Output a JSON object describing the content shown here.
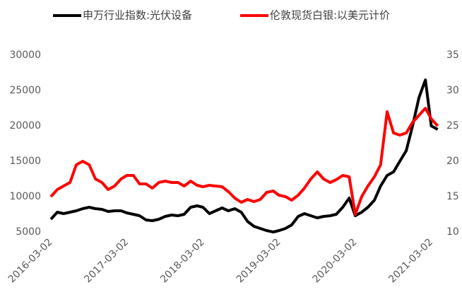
{
  "chart_data": {
    "type": "line",
    "x": [
      "2016-03-02",
      "2016-04-02",
      "2016-05-02",
      "2016-06-02",
      "2016-07-02",
      "2016-08-02",
      "2016-09-02",
      "2016-10-02",
      "2016-11-02",
      "2016-12-02",
      "2017-01-02",
      "2017-02-02",
      "2017-03-02",
      "2017-04-02",
      "2017-05-02",
      "2017-06-02",
      "2017-07-02",
      "2017-08-02",
      "2017-09-02",
      "2017-10-02",
      "2017-11-02",
      "2017-12-02",
      "2018-01-02",
      "2018-02-02",
      "2018-03-02",
      "2018-04-02",
      "2018-05-02",
      "2018-06-02",
      "2018-07-02",
      "2018-08-02",
      "2018-09-02",
      "2018-10-02",
      "2018-11-02",
      "2018-12-02",
      "2019-01-02",
      "2019-02-02",
      "2019-03-02",
      "2019-04-02",
      "2019-05-02",
      "2019-06-02",
      "2019-07-02",
      "2019-08-02",
      "2019-09-02",
      "2019-10-02",
      "2019-11-02",
      "2019-12-02",
      "2020-01-02",
      "2020-02-02",
      "2020-03-02",
      "2020-04-02",
      "2020-05-02",
      "2020-06-02",
      "2020-07-02",
      "2020-08-02",
      "2020-09-02",
      "2020-10-02",
      "2020-11-02",
      "2020-12-02",
      "2021-01-02",
      "2021-02-02",
      "2021-03-02",
      "2021-04-02"
    ],
    "series": [
      {
        "name": "申万行业指数:光伏设备",
        "color": "#000000",
        "axis": "y",
        "values": [
          6800,
          7800,
          7600,
          7800,
          8000,
          8300,
          8500,
          8300,
          8200,
          7900,
          8000,
          8000,
          7700,
          7500,
          7300,
          6700,
          6600,
          6800,
          7200,
          7400,
          7300,
          7500,
          8500,
          8700,
          8500,
          7600,
          8000,
          8400,
          8000,
          8300,
          7800,
          6500,
          5800,
          5500,
          5200,
          5000,
          5200,
          5500,
          6000,
          7200,
          7600,
          7300,
          7000,
          7200,
          7300,
          7500,
          8500,
          9800,
          7300,
          7800,
          8500,
          9500,
          11500,
          13000,
          13500,
          15000,
          16500,
          20000,
          24000,
          26500,
          20000,
          19500
        ]
      },
      {
        "name": "伦敦现货白银:以美元计价",
        "color": "#ff0000",
        "axis": "y2",
        "values": [
          15,
          16,
          16.5,
          17,
          19.5,
          20,
          19.5,
          17.5,
          17,
          16,
          16.5,
          17.5,
          18,
          18,
          16.8,
          16.8,
          16.2,
          17,
          17.2,
          17,
          17,
          16.5,
          17.2,
          16.6,
          16.4,
          16.6,
          16.5,
          16.4,
          15.7,
          14.8,
          14.2,
          14.6,
          14.3,
          14.6,
          15.6,
          15.8,
          15.2,
          15,
          14.5,
          15.2,
          16.2,
          17.5,
          18.5,
          17.5,
          17,
          17.4,
          18,
          17.8,
          12.5,
          15,
          16.5,
          17.8,
          19.5,
          27,
          24,
          23.7,
          24,
          25.5,
          26.5,
          27.5,
          26,
          25
        ]
      }
    ],
    "xlim": [
      "2016-03-02",
      "2021-04-10"
    ],
    "xticks": [
      "2016-03-02",
      "2017-03-02",
      "2018-03-02",
      "2019-03-02",
      "2020-03-02",
      "2021-03-02"
    ],
    "ylim": [
      5000,
      30000
    ],
    "yticks": [
      5000,
      10000,
      15000,
      20000,
      25000,
      30000
    ],
    "y2lim": [
      10,
      35
    ],
    "y2ticks": [
      10,
      15,
      20,
      25,
      30,
      35
    ],
    "grid": false,
    "legend": "top"
  }
}
